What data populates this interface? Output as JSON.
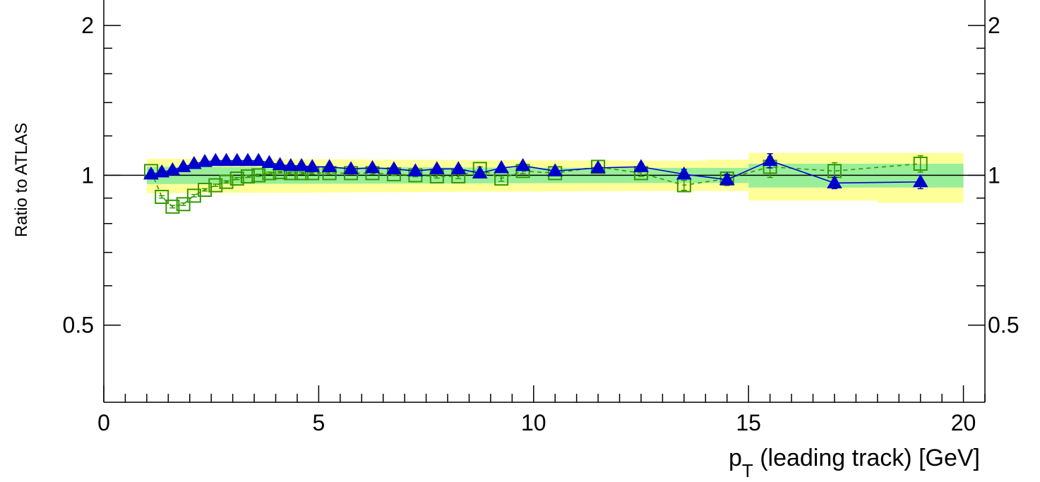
{
  "chart_data": {
    "type": "line",
    "title": "",
    "xlabel": "p",
    "xlabel_sub": "T",
    "xlabel_rest": " (leading track) [GeV]",
    "ylabel": "Ratio to ATLAS",
    "xlim": [
      0,
      20.5
    ],
    "ylim": [
      0.35,
      2.25
    ],
    "y_scale": "log",
    "x_ticks": [
      "0",
      "5",
      "10",
      "15",
      "20"
    ],
    "x_tick_values": [
      0,
      5,
      10,
      15,
      20
    ],
    "y_ticks": [
      "0.5",
      "1",
      "2"
    ],
    "y_tick_values": [
      0.5,
      1,
      2
    ],
    "y_minor_ticks": [
      0.6,
      0.7,
      0.8,
      0.9,
      1.2,
      1.4,
      1.6,
      1.8
    ],
    "grid": false,
    "reference_line": 1,
    "bands": [
      {
        "color": "#ffff99",
        "segments": [
          {
            "x": [
              1.0,
              12.5
            ],
            "lo": [
              0.92,
              0.93
            ],
            "hi": [
              1.08,
              1.07
            ]
          },
          {
            "x": [
              12.5,
              14.0
            ],
            "lo": [
              0.93,
              0.93
            ],
            "hi": [
              1.07,
              1.07
            ]
          },
          {
            "x": [
              14.0,
              15.0
            ],
            "lo": [
              0.93,
              0.93
            ],
            "hi": [
              1.075,
              1.075
            ]
          },
          {
            "x": [
              15.0,
              18.0
            ],
            "lo": [
              0.89,
              0.89
            ],
            "hi": [
              1.11,
              1.11
            ]
          },
          {
            "x": [
              18.0,
              20.0
            ],
            "lo": [
              0.88,
              0.88
            ],
            "hi": [
              1.11,
              1.11
            ]
          }
        ]
      },
      {
        "color": "#99ee99",
        "segments": [
          {
            "x": [
              1.0,
              12.5
            ],
            "lo": [
              0.96,
              0.965
            ],
            "hi": [
              1.04,
              1.035
            ]
          },
          {
            "x": [
              12.5,
              15.0
            ],
            "lo": [
              0.965,
              0.965
            ],
            "hi": [
              1.035,
              1.035
            ]
          },
          {
            "x": [
              15.0,
              20.0
            ],
            "lo": [
              0.945,
              0.945
            ],
            "hi": [
              1.055,
              1.055
            ]
          }
        ]
      }
    ],
    "series": [
      {
        "color": "#339900",
        "marker": "open-square",
        "line": "dashed",
        "x": [
          1.1,
          1.35,
          1.6,
          1.85,
          2.1,
          2.35,
          2.6,
          2.85,
          3.1,
          3.35,
          3.6,
          3.85,
          4.1,
          4.35,
          4.6,
          4.85,
          5.25,
          5.75,
          6.25,
          6.75,
          7.25,
          7.75,
          8.25,
          8.75,
          9.25,
          9.75,
          10.5,
          11.5,
          12.5,
          13.5,
          14.5,
          15.5,
          17.0,
          19.0
        ],
        "y": [
          1.02,
          0.905,
          0.865,
          0.875,
          0.91,
          0.935,
          0.955,
          0.97,
          0.985,
          0.995,
          1.0,
          1.01,
          1.015,
          1.01,
          1.01,
          1.01,
          1.01,
          1.01,
          1.01,
          1.005,
          1.0,
          0.995,
          0.995,
          1.03,
          0.985,
          1.02,
          1.01,
          1.04,
          1.01,
          0.955,
          0.985,
          1.04,
          1.02,
          1.055
        ],
        "err": [
          0.005,
          0.005,
          0.005,
          0.005,
          0.005,
          0.005,
          0.005,
          0.005,
          0.005,
          0.005,
          0.005,
          0.005,
          0.005,
          0.005,
          0.005,
          0.005,
          0.006,
          0.006,
          0.006,
          0.006,
          0.007,
          0.008,
          0.01,
          0.01,
          0.012,
          0.012,
          0.01,
          0.012,
          0.015,
          0.022,
          0.03,
          0.05,
          0.04,
          0.04
        ]
      },
      {
        "color": "#0000cc",
        "marker": "filled-triangle",
        "line": "solid",
        "x": [
          1.1,
          1.35,
          1.6,
          1.85,
          2.1,
          2.35,
          2.6,
          2.85,
          3.1,
          3.35,
          3.6,
          3.85,
          4.1,
          4.35,
          4.6,
          4.85,
          5.25,
          5.75,
          6.25,
          6.75,
          7.25,
          7.75,
          8.25,
          8.75,
          9.25,
          9.75,
          10.5,
          11.5,
          12.5,
          13.5,
          14.5,
          15.5,
          17.0,
          19.0
        ],
        "y": [
          1.005,
          1.015,
          1.025,
          1.04,
          1.055,
          1.065,
          1.07,
          1.07,
          1.07,
          1.07,
          1.07,
          1.06,
          1.05,
          1.045,
          1.045,
          1.04,
          1.04,
          1.03,
          1.035,
          1.03,
          1.02,
          1.03,
          1.03,
          1.01,
          1.035,
          1.045,
          1.02,
          1.035,
          1.04,
          1.005,
          0.98,
          1.07,
          0.965,
          0.97
        ],
        "err": [
          0.004,
          0.004,
          0.004,
          0.004,
          0.004,
          0.004,
          0.004,
          0.004,
          0.004,
          0.004,
          0.004,
          0.004,
          0.004,
          0.004,
          0.005,
          0.005,
          0.005,
          0.006,
          0.006,
          0.006,
          0.007,
          0.008,
          0.01,
          0.01,
          0.012,
          0.012,
          0.01,
          0.012,
          0.015,
          0.022,
          0.025,
          0.035,
          0.025,
          0.03
        ]
      }
    ]
  }
}
